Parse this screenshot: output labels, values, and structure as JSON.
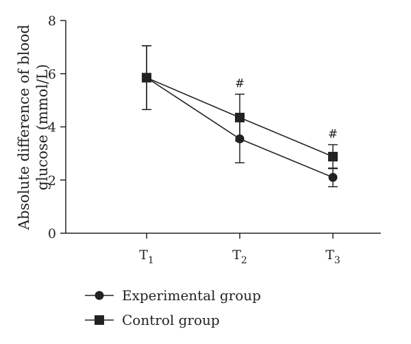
{
  "chart_data": {
    "type": "line",
    "categories": [
      "T1",
      "T2",
      "T3"
    ],
    "category_labels": [
      {
        "base": "T",
        "sub": "1"
      },
      {
        "base": "T",
        "sub": "2"
      },
      {
        "base": "T",
        "sub": "3"
      }
    ],
    "ylabel_lines": [
      "Absolute difference of blood",
      "glucose (mmol/L)"
    ],
    "ylim": [
      0,
      8
    ],
    "yticks": [
      0,
      2,
      4,
      6,
      8
    ],
    "grid": false,
    "legend_position": "bottom-left",
    "series": [
      {
        "name": "Experimental group",
        "marker": "circle",
        "color": "#222222",
        "values": [
          5.85,
          3.55,
          2.1
        ],
        "error": [
          1.2,
          0.9,
          0.35
        ]
      },
      {
        "name": "Control group",
        "marker": "square",
        "color": "#222222",
        "values": [
          5.85,
          4.35,
          2.88
        ],
        "error": [
          1.2,
          0.88,
          0.45
        ]
      }
    ],
    "annotations": [
      {
        "category_index": 1,
        "text": "#"
      },
      {
        "category_index": 2,
        "text": "#"
      }
    ]
  }
}
